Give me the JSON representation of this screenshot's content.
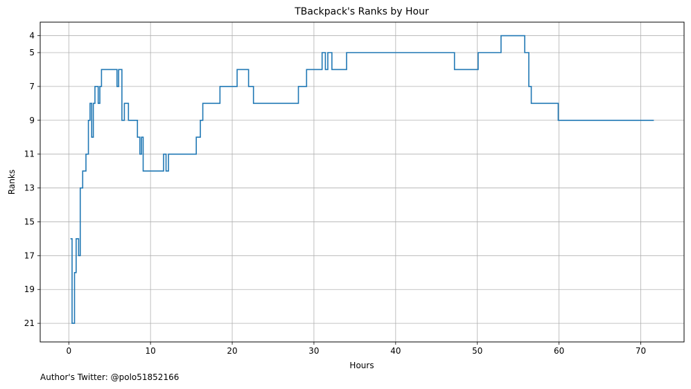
{
  "chart_data": {
    "type": "line",
    "step": "post",
    "title": "TBackpack's Ranks by Hour",
    "xlabel": "Hours",
    "ylabel": "Ranks",
    "xlim": [
      -3.5,
      75.3
    ],
    "ylim": [
      22.1,
      3.2
    ],
    "y_inverted": true,
    "xticks": [
      0,
      10,
      20,
      30,
      40,
      50,
      60,
      70
    ],
    "yticks": [
      4,
      5,
      7,
      9,
      11,
      13,
      15,
      17,
      19,
      21
    ],
    "grid": true,
    "line_color": "#1f77b4",
    "series": [
      {
        "x": [
          0.2,
          0.4,
          0.7,
          0.9,
          1.2,
          1.4,
          1.7,
          2.1,
          2.4,
          2.6,
          2.8,
          3.0,
          3.2,
          3.6,
          3.8,
          4.0,
          4.3,
          5.9,
          6.1,
          6.5,
          6.8,
          7.3,
          8.4,
          8.7,
          8.9,
          9.1,
          9.3,
          11.6,
          11.9,
          12.2,
          15.6,
          16.1,
          16.4,
          18.5,
          20.6,
          22.0,
          22.6,
          28.1,
          29.1,
          31.0,
          31.4,
          31.7,
          32.2,
          34.0,
          47.2,
          50.1,
          52.9,
          55.8,
          56.3,
          56.6,
          59.9,
          71.6
        ],
        "y": [
          16,
          21,
          18,
          16,
          17,
          13,
          12,
          11,
          9,
          8,
          10,
          8,
          7,
          8,
          7,
          6,
          6,
          7,
          6,
          9,
          8,
          9,
          10,
          11,
          10,
          12,
          12,
          11,
          12,
          11,
          10,
          9,
          8,
          7,
          6,
          7,
          8,
          7,
          6,
          5,
          6,
          5,
          6,
          5,
          6,
          5,
          4,
          5,
          7,
          8,
          9,
          9
        ]
      }
    ]
  },
  "footnote": "Author's Twitter: @polo51852166"
}
